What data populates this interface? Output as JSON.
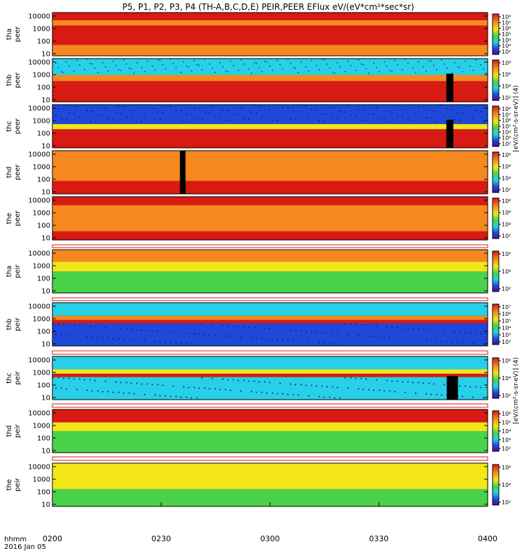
{
  "title": "P5, P1, P2, P3, P4 (TH-A,B,C,D,E) PEIR,PEER EFlux eV/(eV*cm²*sec*sr)",
  "colorbar_label_peer": "[eV/(cm²-s-sr-eV)] (4)",
  "colorbar_label_peir": "[eV/(cm²-s-sr-eV)] (4)",
  "time_axis": {
    "prefix_label": "hhmm",
    "date_label": "2016 Jan 05",
    "ticks": [
      "0200",
      "0230",
      "0300",
      "0330",
      "0400"
    ]
  },
  "colors": {
    "red": "#d81a12",
    "orange": "#f5891f",
    "yellow": "#f3e618",
    "green": "#49d24a",
    "cyan": "#27d0e6",
    "blue": "#1e48d8",
    "navy": "#1a1a9a",
    "black": "#000000"
  },
  "chart_data": {
    "type": "heatmap",
    "x": {
      "range": [
        "0200",
        "0400"
      ],
      "unit": "hhmm"
    },
    "y": {
      "scale": "log",
      "ticks": [
        "10",
        "100",
        "1000",
        "10000"
      ]
    },
    "panels": [
      {
        "probe": "tha",
        "instrument": "peer",
        "ylabel": [
          "tha",
          "peer"
        ],
        "colorbar_ticks": [
          "10²",
          "10³",
          "10⁴",
          "10⁵",
          "10⁶",
          "10⁷",
          "10⁸"
        ]
      },
      {
        "probe": "thb",
        "instrument": "peer",
        "ylabel": [
          "thb",
          "peer"
        ],
        "colorbar_ticks": [
          "10²",
          "10⁴",
          "10⁶",
          "10⁸"
        ]
      },
      {
        "probe": "thc",
        "instrument": "peer",
        "ylabel": [
          "thc",
          "peer"
        ],
        "colorbar_ticks": [
          "10²",
          "10³",
          "10⁴",
          "10⁵",
          "10⁶",
          "10⁷",
          "10⁸"
        ]
      },
      {
        "probe": "thd",
        "instrument": "peer",
        "ylabel": [
          "thd",
          "peer"
        ],
        "colorbar_ticks": [
          "10²",
          "10⁴",
          "10⁶",
          "10⁸"
        ]
      },
      {
        "probe": "the",
        "instrument": "peer",
        "ylabel": [
          "the",
          "peer"
        ],
        "colorbar_ticks": [
          "10²",
          "10⁴",
          "10⁶",
          "10⁸"
        ]
      },
      {
        "probe": "tha",
        "instrument": "peir",
        "ylabel": [
          "tha",
          "peir"
        ],
        "colorbar_ticks": [
          "10²",
          "10⁴",
          "10⁶"
        ]
      },
      {
        "probe": "thb",
        "instrument": "peir",
        "ylabel": [
          "thb",
          "peir"
        ],
        "colorbar_ticks": [
          "10²",
          "10³",
          "10⁴",
          "10⁵",
          "10⁶",
          "10⁷"
        ]
      },
      {
        "probe": "thc",
        "instrument": "peir",
        "ylabel": [
          "thc",
          "peir"
        ],
        "colorbar_ticks": [
          "10²",
          "10⁴",
          "10⁶"
        ]
      },
      {
        "probe": "thd",
        "instrument": "peir",
        "ylabel": [
          "thd",
          "peir"
        ],
        "colorbar_ticks": [
          "10²",
          "10³",
          "10⁴",
          "10⁵",
          "10⁶"
        ]
      },
      {
        "probe": "the",
        "instrument": "peir",
        "ylabel": [
          "the",
          "peir"
        ],
        "colorbar_ticks": [
          "10²",
          "10⁴",
          "10⁶"
        ]
      }
    ]
  }
}
